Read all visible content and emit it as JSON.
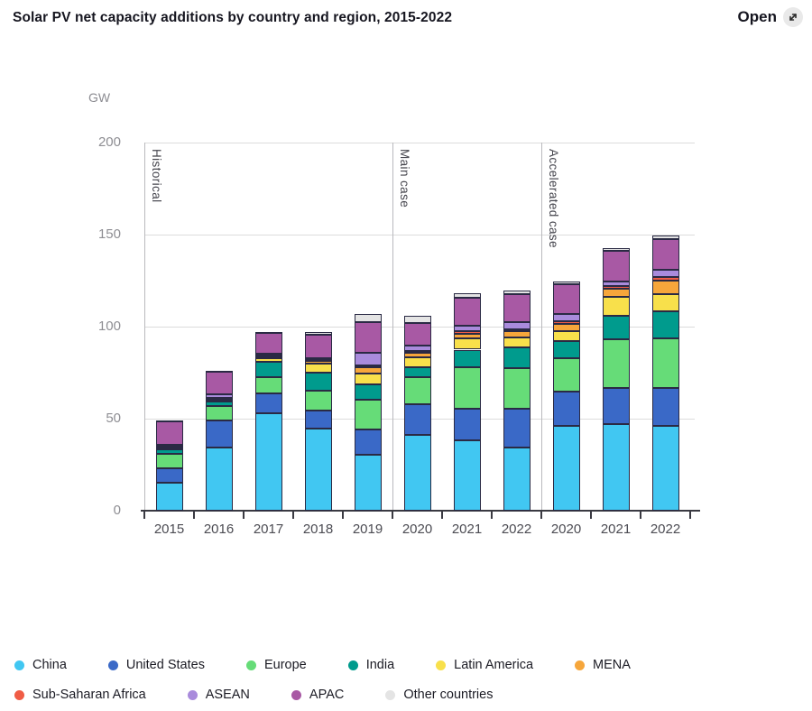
{
  "header": {
    "title": "Solar PV net capacity additions by country and region, 2015-2022",
    "open_label": "Open",
    "open_icon": "external-link-arrow"
  },
  "chart_data": {
    "type": "bar",
    "stacked": true,
    "title": "Solar PV net capacity additions by country and region, 2015-2022",
    "unit_label": "GW",
    "ylabel": "GW",
    "ylim": [
      0,
      200
    ],
    "yticks": [
      0,
      50,
      100,
      150,
      200
    ],
    "grid": true,
    "legend_position": "bottom",
    "categories": [
      "2015",
      "2016",
      "2017",
      "2018",
      "2019",
      "2020",
      "2021",
      "2022",
      "2020",
      "2021",
      "2022"
    ],
    "sections": [
      {
        "label": "Historical",
        "start": 0,
        "end": 4
      },
      {
        "label": "Main case",
        "start": 5,
        "end": 7
      },
      {
        "label": "Accelerated case",
        "start": 8,
        "end": 10
      }
    ],
    "series": [
      {
        "name": "China",
        "color": "#41c7f2",
        "values": [
          15,
          34.5,
          53,
          44.5,
          30.5,
          41,
          38,
          34.5,
          46,
          47,
          46
        ]
      },
      {
        "name": "United States",
        "color": "#3a69c7",
        "values": [
          8,
          14.5,
          10.5,
          10,
          13.5,
          17,
          17.5,
          21,
          18.5,
          19.5,
          20.5
        ]
      },
      {
        "name": "Europe",
        "color": "#66dc78",
        "values": [
          8,
          8,
          9,
          10.5,
          16.5,
          14.5,
          22.5,
          22,
          18.5,
          26.5,
          27
        ]
      },
      {
        "name": "India",
        "color": "#009b8d",
        "values": [
          2.5,
          2.5,
          8.5,
          10,
          8,
          5.5,
          9.5,
          11,
          9,
          13,
          15
        ]
      },
      {
        "name": "Latin America",
        "color": "#f8e04b",
        "values": [
          1,
          1,
          2,
          5,
          6,
          5.5,
          6,
          5.5,
          5.5,
          10,
          9
        ]
      },
      {
        "name": "MENA",
        "color": "#f6a63b",
        "values": [
          0.5,
          0.5,
          1,
          1.5,
          3.5,
          2.5,
          2.5,
          3.5,
          4,
          4.5,
          7.5
        ]
      },
      {
        "name": "Sub-Saharan Africa",
        "color": "#f05c45",
        "values": [
          0.5,
          0.5,
          1,
          0.5,
          1,
          1,
          1.5,
          1,
          1.5,
          1.5,
          2
        ]
      },
      {
        "name": "ASEAN",
        "color": "#a98bdc",
        "values": [
          0.5,
          1.5,
          0.5,
          1,
          7,
          2.5,
          3,
          4,
          4,
          2.5,
          4
        ]
      },
      {
        "name": "APAC",
        "color": "#a859a4",
        "values": [
          12.5,
          12.5,
          11,
          12.5,
          16.5,
          12.5,
          15,
          15,
          16,
          16.5,
          16.5
        ]
      },
      {
        "name": "Other countries",
        "color": "#e4e4e4",
        "values": [
          0.5,
          0.5,
          0.5,
          1.5,
          4.5,
          4,
          2.5,
          2,
          1.5,
          1.5,
          2
        ]
      }
    ],
    "legend_rows": [
      [
        0,
        1,
        2,
        3,
        4,
        5
      ],
      [
        6,
        7,
        8,
        9
      ]
    ]
  }
}
